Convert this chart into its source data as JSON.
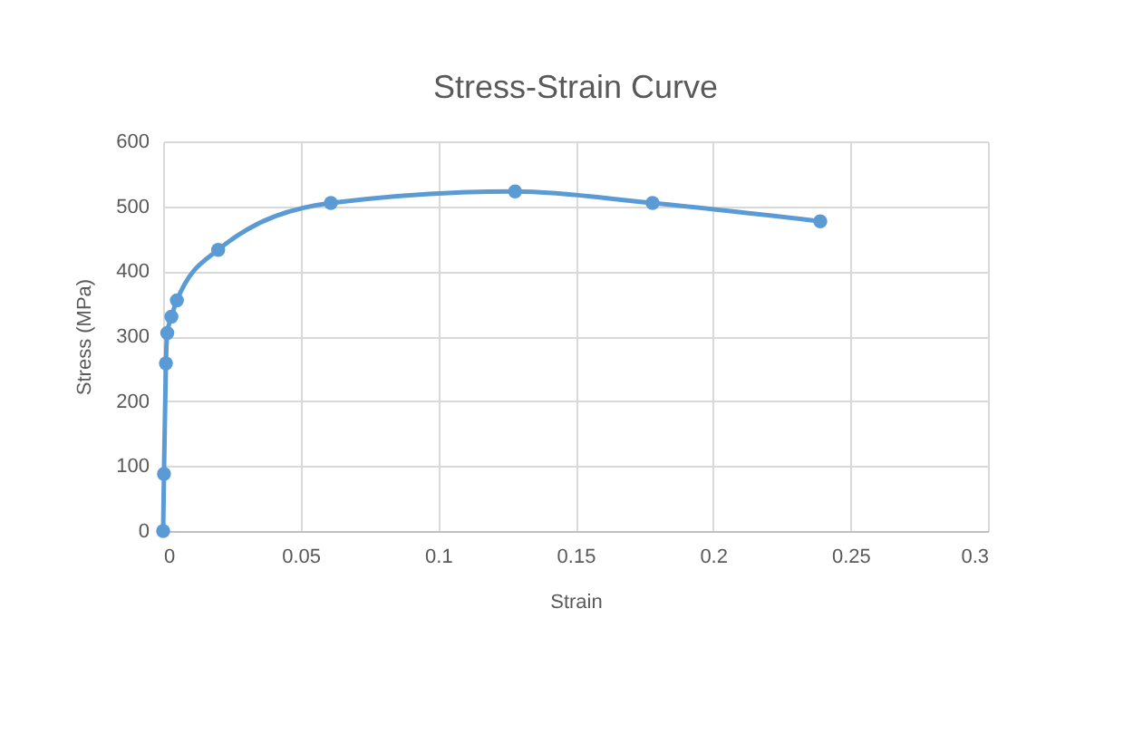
{
  "chart_data": {
    "type": "line",
    "title": "Stress-Strain Curve",
    "xlabel": "Strain",
    "ylabel": "Stress (MPa)",
    "x": [
      0,
      0.0003,
      0.001,
      0.0015,
      0.003,
      0.005,
      0.02,
      0.061,
      0.128,
      0.178,
      0.239
    ],
    "series": [
      {
        "color": "#5b9bd5",
        "values": [
          0,
          88,
          258,
          305,
          330,
          355,
          433,
          505,
          523,
          505,
          477
        ]
      }
    ],
    "xlim": [
      0,
      0.3
    ],
    "xticks": [
      0,
      0.05,
      0.1,
      0.15,
      0.2,
      0.25,
      0.3
    ],
    "ylim": [
      0,
      600
    ],
    "yticks": [
      0,
      100,
      200,
      300,
      400,
      500,
      600
    ],
    "grid": true,
    "marker": "circle",
    "line_style": "solid",
    "legend": false
  }
}
